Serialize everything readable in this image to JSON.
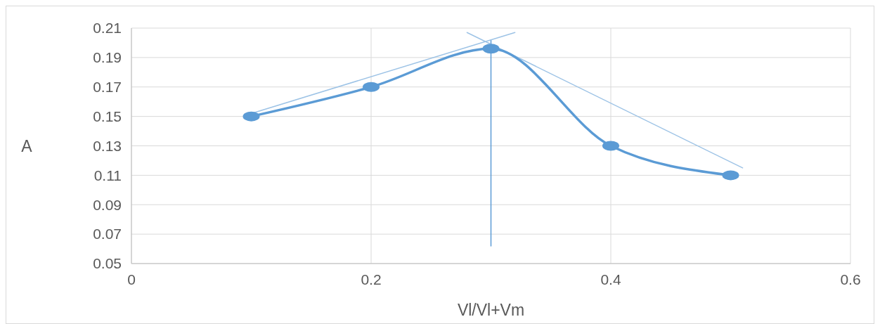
{
  "chart_data": {
    "type": "line",
    "xlabel": "Vl/Vl+Vm",
    "ylabel": "A",
    "xlim": [
      0,
      0.6
    ],
    "xticks": [
      0,
      0.2,
      0.4,
      0.6
    ],
    "ylim": [
      0.05,
      0.21
    ],
    "yticks": [
      {
        "value": 0.05,
        "label": "0.05"
      },
      {
        "value": 0.07,
        "label": "0.07"
      },
      {
        "value": 0.09,
        "label": "0.09"
      },
      {
        "value": 0.11,
        "label": "0.11"
      },
      {
        "value": 0.13,
        "label": "0.13"
      },
      {
        "value": 0.15,
        "label": "0.15"
      },
      {
        "value": 0.17,
        "label": "0.17"
      },
      {
        "value": 0.19,
        "label": "0.19"
      },
      {
        "value": 0.21,
        "label": "0.21"
      }
    ],
    "grid": true,
    "series": [
      {
        "color": "#5b9bd5",
        "x": [
          0.1,
          0.2,
          0.3,
          0.4,
          0.5
        ],
        "values": [
          0.15,
          0.17,
          0.196,
          0.13,
          0.11
        ],
        "marker": "circle"
      },
      {
        "type": "line",
        "color": "#9dc3e6",
        "x": [
          0.1,
          0.32
        ],
        "values": [
          0.152,
          0.207
        ],
        "marker": "none"
      },
      {
        "type": "line",
        "color": "#9dc3e6",
        "x": [
          0.28,
          0.51
        ],
        "values": [
          0.207,
          0.115
        ],
        "marker": "none"
      },
      {
        "type": "line",
        "color": "#5b9bd5",
        "x": [
          0.3,
          0.3
        ],
        "values": [
          0.062,
          0.202
        ],
        "marker": "none"
      }
    ]
  }
}
